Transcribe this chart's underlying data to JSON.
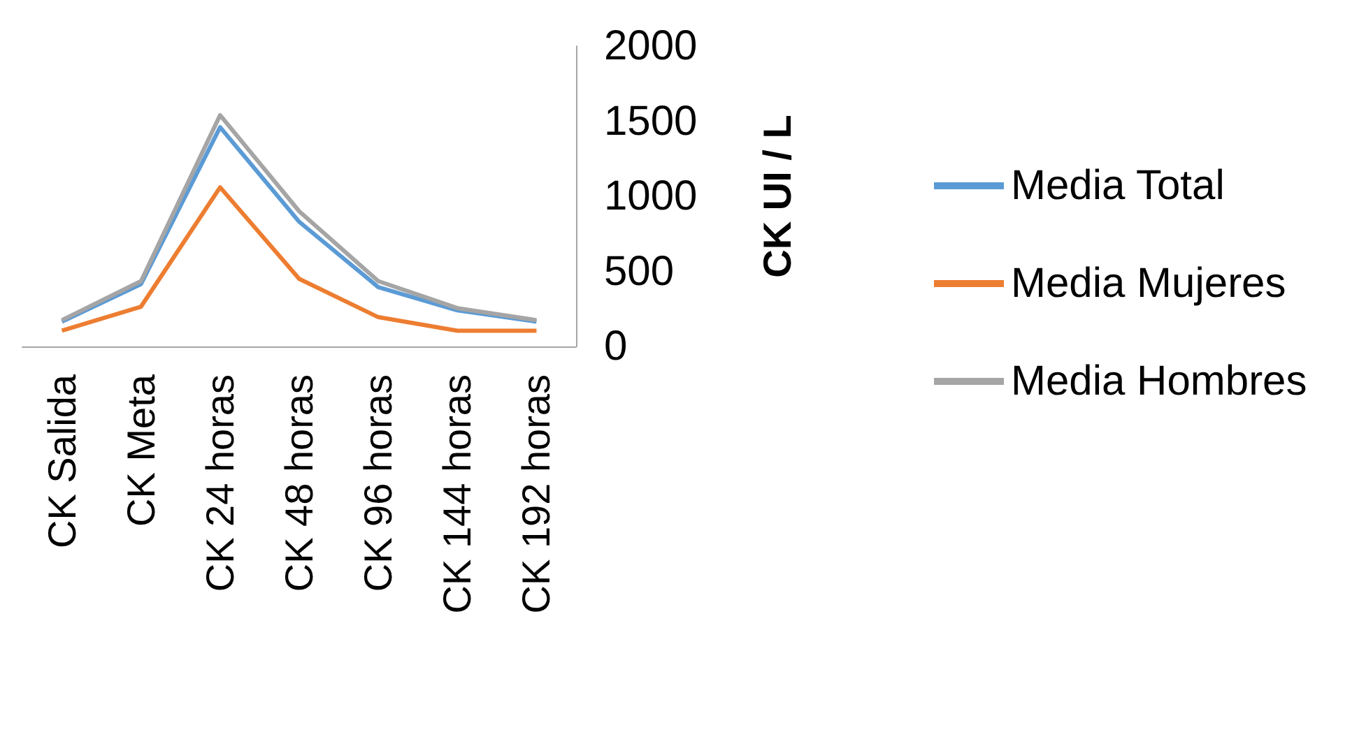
{
  "chart_data": {
    "type": "line",
    "categories": [
      "CK Salida",
      "CK Meta",
      "CK 24 horas",
      "CK 48 horas",
      "CK 96 horas",
      "CK 144 horas",
      "CK 192 horas"
    ],
    "ylabel": "CK UI / L",
    "ylim": [
      0,
      2000
    ],
    "yticks": [
      0,
      500,
      1000,
      1500,
      2000
    ],
    "grid": false,
    "legend": "right",
    "marker": "none",
    "series": [
      {
        "name": "Media Total",
        "color": "#5b9bd5",
        "values": [
          165,
          415,
          1460,
          830,
          395,
          240,
          165
        ]
      },
      {
        "name": "Media Mujeres",
        "color": "#ed7d31",
        "values": [
          105,
          265,
          1060,
          450,
          195,
          105,
          105
        ]
      },
      {
        "name": "Media Hombres",
        "color": "#a5a5a5",
        "values": [
          175,
          435,
          1540,
          900,
          435,
          255,
          175
        ]
      }
    ]
  }
}
